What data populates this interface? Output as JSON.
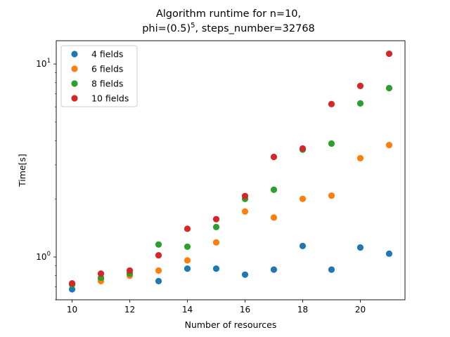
{
  "chart_data": {
    "type": "scatter",
    "title_line1": "Algorithm runtime for n=10,",
    "title_line2_before": "phi=(0.5)",
    "title_line2_sup": "5",
    "title_line2_after": ", steps_number=32768",
    "xlabel": "Number of resources",
    "ylabel": "Time[s]",
    "xlim": [
      9.45,
      21.55
    ],
    "ylim": [
      0.6,
      13.2
    ],
    "yscale": "log",
    "x_ticks": [
      10,
      12,
      14,
      16,
      18,
      20
    ],
    "y_ticks": [
      1,
      10
    ],
    "y_tick_labels": [
      [
        "10",
        "0"
      ],
      [
        "10",
        "1"
      ]
    ],
    "grid": false,
    "legend_position": "top-left",
    "series": [
      {
        "name": "4 fields",
        "color": "#1f77b4",
        "x": [
          10,
          11,
          12,
          13,
          14,
          15,
          16,
          17,
          18,
          19,
          20,
          21
        ],
        "y": [
          0.68,
          0.77,
          0.82,
          0.75,
          0.87,
          0.87,
          0.81,
          0.86,
          1.14,
          0.86,
          1.12,
          1.04
        ]
      },
      {
        "name": "6 fields",
        "color": "#ff7f0e",
        "x": [
          10,
          11,
          12,
          13,
          14,
          15,
          16,
          17,
          18,
          19,
          20,
          21
        ],
        "y": [
          0.72,
          0.75,
          0.8,
          0.85,
          0.96,
          1.19,
          1.72,
          1.6,
          2.0,
          2.08,
          3.25,
          3.8
        ]
      },
      {
        "name": "8 fields",
        "color": "#2ca02c",
        "x": [
          10,
          11,
          12,
          13,
          14,
          15,
          16,
          17,
          18,
          19,
          20,
          21
        ],
        "y": [
          0.72,
          0.78,
          0.82,
          1.16,
          1.13,
          1.43,
          2.0,
          2.23,
          3.6,
          3.87,
          6.25,
          7.5
        ]
      },
      {
        "name": "10 fields",
        "color": "#d62728",
        "x": [
          10,
          11,
          12,
          13,
          14,
          15,
          16,
          17,
          18,
          19,
          20,
          21
        ],
        "y": [
          0.73,
          0.82,
          0.85,
          1.02,
          1.4,
          1.57,
          2.07,
          3.3,
          3.65,
          6.2,
          7.7,
          11.3
        ]
      }
    ]
  }
}
